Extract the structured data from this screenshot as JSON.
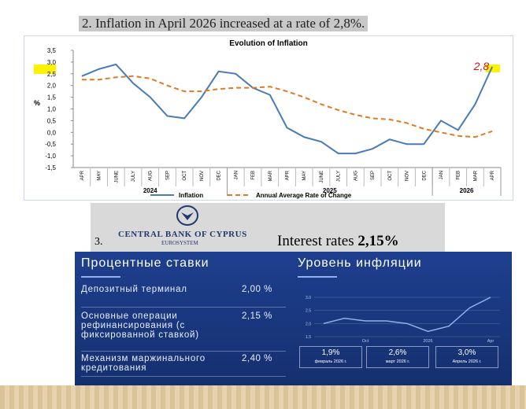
{
  "heading": "2. Inflation in April 2026 increased at a rate of 2,8%.",
  "chart_data": [
    {
      "type": "line",
      "title": "Evolution of Inflation",
      "y_label": "%",
      "categories": [
        "APR",
        "MAY",
        "JUNE",
        "JULY",
        "AUG",
        "SEP",
        "OCT",
        "NOV",
        "DEC",
        "JAN",
        "FEB",
        "MAR",
        "APR",
        "MAY",
        "JUNE",
        "JULY",
        "AUG",
        "SEP",
        "OCT",
        "NOV",
        "DEC",
        "JAN",
        "FEB",
        "MAR",
        "APR"
      ],
      "year_labels": [
        "2024",
        "2025",
        "2026"
      ],
      "series": [
        {
          "name": "Inflation",
          "color": "#4a7ab8",
          "values": [
            2.4,
            2.7,
            2.9,
            2.1,
            1.5,
            0.7,
            0.6,
            1.5,
            2.6,
            2.5,
            1.9,
            1.6,
            0.2,
            -0.2,
            -0.4,
            -0.9,
            -0.9,
            -0.7,
            -0.3,
            -0.5,
            -0.5,
            0.5,
            0.1,
            1.2,
            2.8
          ]
        },
        {
          "name": "Annual Average Rate of Change",
          "color": "#e07b24",
          "dashed": true,
          "values": [
            2.25,
            2.25,
            2.35,
            2.4,
            2.3,
            2.0,
            1.75,
            1.75,
            1.85,
            1.9,
            1.9,
            1.95,
            1.75,
            1.5,
            1.2,
            0.95,
            0.75,
            0.6,
            0.55,
            0.4,
            0.15,
            0.0,
            -0.15,
            -0.2,
            0.05
          ]
        }
      ],
      "annotations": [
        "2,8"
      ],
      "ylim": [
        -1.5,
        3.5
      ],
      "yticks": [
        {
          "value": -1.5,
          "label": "-1,5"
        },
        {
          "value": -1,
          "label": "-1,0"
        },
        {
          "value": -0.5,
          "label": "-0,5"
        },
        {
          "value": 0,
          "label": "0,0"
        },
        {
          "value": 0.5,
          "label": "0,5"
        },
        {
          "value": 1,
          "label": "1,0"
        },
        {
          "value": 1.5,
          "label": "1,5"
        },
        {
          "value": 2,
          "label": "2,0"
        },
        {
          "value": 2.5,
          "label": "2,5"
        },
        {
          "value": 3,
          "label": "3,0"
        },
        {
          "value": 3.5,
          "label": "3,5"
        }
      ],
      "grid": false
    },
    {
      "type": "line",
      "title": "Уровень инфляции",
      "categories": [
        null,
        null,
        "Oct",
        null,
        null,
        "2026",
        null,
        null,
        "Apr"
      ],
      "values": [
        2.0,
        2.2,
        2.1,
        2.1,
        2.0,
        1.7,
        1.9,
        2.6,
        3.0
      ],
      "color": "#8fb1ea",
      "ylim": [
        1.5,
        3.3
      ],
      "yticks": [
        1.5,
        {
          "value": 2,
          "label": "2.0"
        },
        2.5,
        {
          "value": 3,
          "label": "3.0"
        }
      ],
      "grid": true
    }
  ],
  "section3": {
    "number": "3.",
    "bank_name": "CENTRAL BANK OF CYPRUS",
    "bank_sub": "EUROSYSTEM",
    "interest_label": "Interest rates",
    "interest_value": "2,15%"
  },
  "rates_panel": {
    "title": "Процентные ставки",
    "rows": [
      [
        "Депозитный терминал",
        "2,00 %"
      ],
      [
        "Основные операции рефинансирования (с фиксированной ставкой)",
        "2,15 %"
      ],
      [
        "Механизм маржинального кредитования",
        "2,40 %"
      ]
    ]
  },
  "inflation_stats": [
    {
      "value": "1,9%",
      "label": "февраль 2026 г."
    },
    {
      "value": "2,6%",
      "label": "март 2026 г."
    },
    {
      "value": "3,0%",
      "label": "Апрель 2026 г."
    }
  ]
}
